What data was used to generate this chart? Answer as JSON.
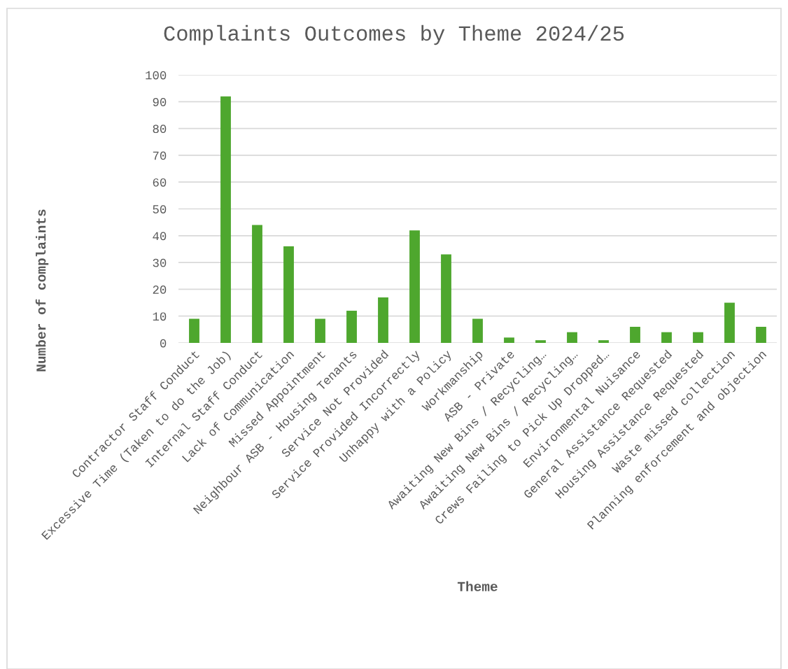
{
  "chart_data": {
    "type": "bar",
    "title": "Complaints Outcomes by Theme 2024/25",
    "xlabel": "Theme",
    "ylabel": "Number of complaints",
    "categories": [
      "Contractor Staff Conduct",
      "Excessive Time (Taken to do the Job)",
      "Internal Staff Conduct",
      "Lack of Communication",
      "Missed Appointment",
      "Neighbour ASB - Housing Tenants",
      "Service Not Provided",
      "Service Provided Incorrectly",
      "Unhappy with a Policy",
      "Workmanship",
      "ASB - Private",
      "Awaiting New Bins / Recycling…",
      "Awaiting New Bins / Recycling…",
      "Crews Failing to Pick Up Dropped…",
      "Environmental Nuisance",
      "General Assistance Requested",
      "Housing Assistance Requested",
      "Waste missed collection",
      "Planning enforcement and objection"
    ],
    "values": [
      9,
      92,
      44,
      36,
      9,
      12,
      17,
      42,
      33,
      9,
      2,
      1,
      4,
      1,
      6,
      4,
      4,
      15,
      6
    ],
    "color": "#4ea72e",
    "ylim": [
      0,
      100
    ],
    "yticks": [
      0,
      10,
      20,
      30,
      40,
      50,
      60,
      70,
      80,
      90,
      100
    ],
    "grid": "y"
  }
}
